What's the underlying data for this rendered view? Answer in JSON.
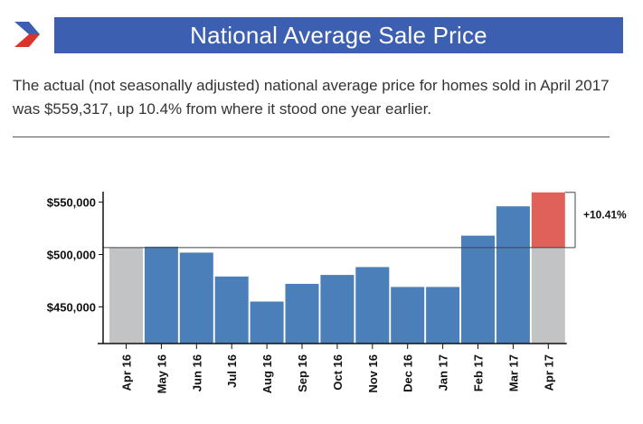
{
  "header": {
    "title": "National Average Sale Price",
    "subtitle": "The actual (not seasonally adjusted) national average price for homes sold in April 2017 was $559,317, up 10.4% from where it stood one year earlier."
  },
  "colors": {
    "title_bar": "#3d5fb1",
    "bar_blue": "#4a7fba",
    "bar_gray": "#c1c3c5",
    "bar_red": "#e0605a",
    "logo_blue": "#3d5fb1",
    "logo_red": "#d9342b"
  },
  "chart_data": {
    "type": "bar",
    "title": "",
    "xlabel": "",
    "ylabel": "",
    "ylim": [
      415000,
      560000
    ],
    "yticks": [
      450000,
      500000,
      550000
    ],
    "ytick_labels": [
      "$450,000",
      "$500,000",
      "$550,000"
    ],
    "categories": [
      "Apr 16",
      "May 16",
      "Jun 16",
      "Jul 16",
      "Aug 16",
      "Sep 16",
      "Oct 16",
      "Nov 16",
      "Dec 16",
      "Jan 17",
      "Feb 17",
      "Mar 17",
      "Apr 17"
    ],
    "values": [
      506600,
      507500,
      501800,
      479000,
      455100,
      472000,
      480500,
      488000,
      469000,
      469000,
      518000,
      546000,
      559317
    ],
    "bar_colors": [
      "gray",
      "blue",
      "blue",
      "blue",
      "blue",
      "blue",
      "blue",
      "blue",
      "blue",
      "blue",
      "blue",
      "blue",
      "gray+red"
    ],
    "reference_line": 506600,
    "annotation": "+10.41%"
  }
}
